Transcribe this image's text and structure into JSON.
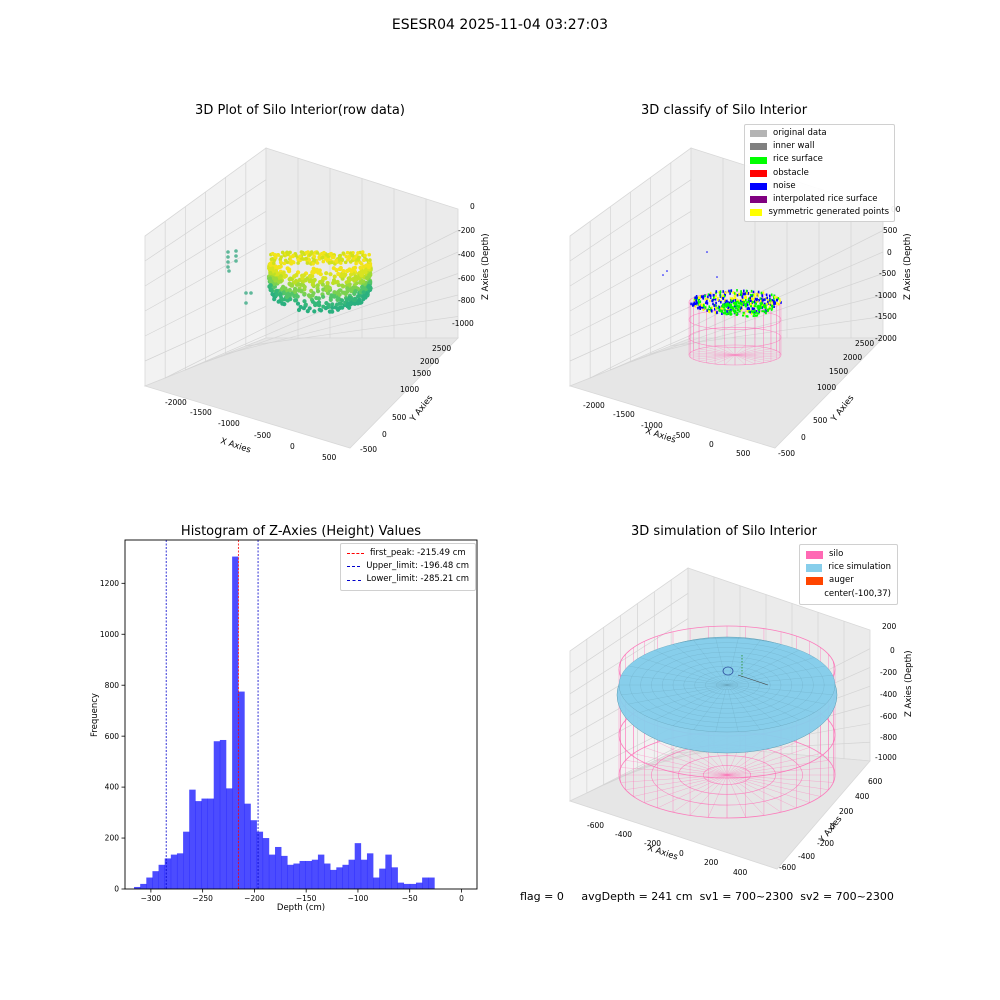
{
  "figure": {
    "suptitle": "ESESR04 2025-11-04 03:27:03",
    "footer": {
      "flag": "flag = 0",
      "avg_depth": "avgDepth = 241 cm",
      "sv1": "sv1 = 700~2300",
      "sv2": "sv2 = 700~2300"
    }
  },
  "panels": {
    "raw": {
      "title": "3D Plot of Silo Interior(row data)",
      "xlabel": "X Axies",
      "ylabel": "Y Axies",
      "zlabel": "Z Axies (Depth)",
      "xticks": [
        "-2000",
        "-1500",
        "-1000",
        "-500",
        "0",
        "500"
      ],
      "yticks": [
        "-500",
        "0",
        "500",
        "1000",
        "1500",
        "2000",
        "2500"
      ],
      "zticks": [
        "0",
        "-200",
        "-400",
        "-600",
        "-800",
        "-1000"
      ]
    },
    "classify": {
      "title": "3D classify of Silo Interior",
      "xlabel": "X Axies",
      "ylabel": "Y Axies",
      "zlabel": "Z Axies (Depth)",
      "xticks": [
        "-2000",
        "-1500",
        "-1000",
        "-500",
        "0",
        "500"
      ],
      "yticks": [
        "-500",
        "0",
        "500",
        "1000",
        "1500",
        "2000",
        "2500"
      ],
      "zticks": [
        "500",
        "0",
        "-500",
        "-1000",
        "-1500",
        "-2000"
      ],
      "ztick_top_partial": "00",
      "legend": [
        {
          "label": "original data",
          "color": "#b4b4b4"
        },
        {
          "label": "inner wall",
          "color": "#808080"
        },
        {
          "label": "rice surface",
          "color": "#00ff00"
        },
        {
          "label": "obstacle",
          "color": "#ff0000"
        },
        {
          "label": "noise",
          "color": "#0000ff"
        },
        {
          "label": "interpolated rice surface",
          "color": "#800080"
        },
        {
          "label": "symmetric generated points",
          "color": "#ffff00"
        }
      ]
    },
    "simulation": {
      "title": "3D simulation of Silo Interior",
      "xlabel": "X Axies",
      "ylabel": "Y Axies",
      "zlabel": "Z Axies (Depth)",
      "xticks": [
        "-600",
        "-400",
        "-200",
        "0",
        "200",
        "400"
      ],
      "yticks": [
        "-600",
        "-400",
        "-200",
        "0",
        "200",
        "400",
        "600"
      ],
      "zticks": [
        "200",
        "0",
        "-200",
        "-400",
        "-600",
        "-800",
        "-1000"
      ],
      "legend": [
        {
          "label": "silo",
          "color": "#ff69b4"
        },
        {
          "label": "rice simulation",
          "color": "#87ceeb"
        },
        {
          "label": "auger",
          "color": "#ff4500"
        },
        {
          "label": "center(-100,37)",
          "color": "#ffffff"
        }
      ],
      "colors": {
        "silo": "#ff69b4",
        "rice": "#87ceeb"
      }
    }
  },
  "chart_data": {
    "type": "bar",
    "title": "Histogram of Z-Axies (Height) Values",
    "xlabel": "Depth (cm)",
    "ylabel": "Frequency",
    "xlim": [
      -325,
      15
    ],
    "ylim": [
      0,
      1370
    ],
    "xticks": [
      -300,
      -250,
      -200,
      -150,
      -100,
      -50,
      0
    ],
    "yticks": [
      0,
      200,
      400,
      600,
      800,
      1000,
      1200
    ],
    "bar_color": "#0000ff",
    "bin_start": -316.25,
    "bin_width": 5.92,
    "values": [
      8,
      20,
      45,
      70,
      95,
      120,
      135,
      140,
      225,
      390,
      345,
      355,
      355,
      580,
      585,
      395,
      1305,
      775,
      335,
      270,
      225,
      200,
      135,
      165,
      130,
      95,
      100,
      110,
      110,
      115,
      135,
      100,
      75,
      85,
      95,
      115,
      180,
      115,
      140,
      45,
      80,
      135,
      85,
      25,
      20,
      20,
      25,
      45,
      45
    ],
    "legend_position": "top-right",
    "lines": [
      {
        "name": "first_peak: -215.49 cm",
        "x": -215.49,
        "color": "#ff0000"
      },
      {
        "name": "Upper_limit: -196.48 cm",
        "x": -196.48,
        "color": "#0000cc"
      },
      {
        "name": "Lower_limit: -285.21 cm",
        "x": -285.21,
        "color": "#0000cc"
      }
    ]
  }
}
